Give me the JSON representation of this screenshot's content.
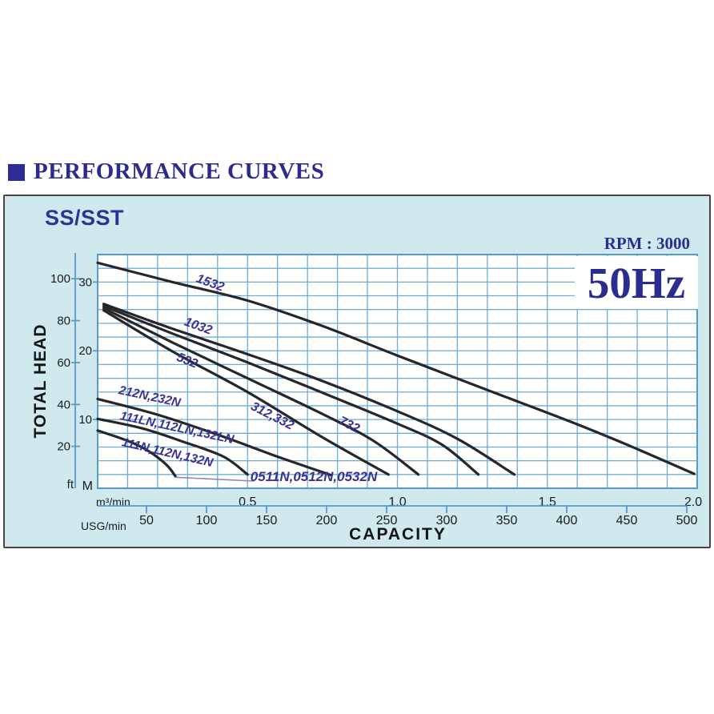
{
  "header": {
    "title": "PERFORMANCE CURVES"
  },
  "panel": {
    "model": "SS/SST",
    "rpm_label": "RPM : 3000",
    "frequency_label": "50Hz"
  },
  "chart_data": {
    "type": "line",
    "title": "SS/SST pump performance curves, RPM 3000, 50Hz",
    "xlabel": "CAPACITY",
    "ylabel": "TOTAL HEAD",
    "grid": true,
    "legend_position": "labels-on-curves",
    "x_axis": {
      "primary_unit": "m³/min",
      "primary_ticks": [
        "0.5",
        "1.0",
        "1.5",
        "2.0"
      ],
      "primary_range": [
        0,
        2.0
      ],
      "secondary_unit": "USG/min",
      "secondary_ticks": [
        50,
        100,
        150,
        200,
        250,
        300,
        350,
        400,
        450,
        500
      ]
    },
    "y_axis": {
      "primary_unit": "M",
      "primary_ticks": [
        10,
        20,
        30
      ],
      "primary_range": [
        0,
        34
      ],
      "secondary_unit": "ft",
      "secondary_ticks": [
        20,
        40,
        60,
        80,
        100
      ]
    },
    "series": [
      {
        "label": "1532",
        "points": [
          [
            0,
            32.8
          ],
          [
            0.25,
            30.0
          ],
          [
            0.5,
            27.3
          ],
          [
            0.75,
            23.6
          ],
          [
            1.0,
            19.3
          ],
          [
            1.3,
            14.3
          ],
          [
            1.6,
            9.3
          ],
          [
            1.8,
            5.7
          ],
          [
            1.99,
            2.1
          ]
        ]
      },
      {
        "label": "732",
        "points": [
          [
            0.02,
            26.8
          ],
          [
            0.25,
            23.2
          ],
          [
            0.5,
            19.5
          ],
          [
            0.75,
            15.6
          ],
          [
            1.0,
            11.2
          ],
          [
            1.2,
            7.2
          ],
          [
            1.39,
            2.0
          ]
        ]
      },
      {
        "label": "1032",
        "points": [
          [
            0.02,
            26.5
          ],
          [
            0.25,
            22.5
          ],
          [
            0.5,
            18.3
          ],
          [
            0.75,
            13.9
          ],
          [
            1.0,
            9.4
          ],
          [
            1.15,
            6.3
          ],
          [
            1.27,
            2.0
          ]
        ]
      },
      {
        "label": "532",
        "points": [
          [
            0.02,
            26.2
          ],
          [
            0.25,
            21.2
          ],
          [
            0.5,
            16.0
          ],
          [
            0.75,
            10.8
          ],
          [
            0.92,
            6.9
          ],
          [
            1.07,
            2.0
          ]
        ]
      },
      {
        "label": "312,332",
        "points": [
          [
            0.02,
            25.9
          ],
          [
            0.25,
            19.9
          ],
          [
            0.5,
            14.0
          ],
          [
            0.75,
            7.4
          ],
          [
            0.97,
            2.0
          ]
        ]
      },
      {
        "label": "212N,232N",
        "points": [
          [
            0,
            13.0
          ],
          [
            0.2,
            10.7
          ],
          [
            0.4,
            7.8
          ],
          [
            0.6,
            4.6
          ],
          [
            0.78,
            1.9
          ]
        ]
      },
      {
        "label": "111LN,112LN,132LN",
        "points": [
          [
            0,
            10.1
          ],
          [
            0.15,
            8.7
          ],
          [
            0.29,
            6.7
          ],
          [
            0.42,
            4.6
          ],
          [
            0.5,
            2.0
          ]
        ]
      },
      {
        "label": "111N,112N,132N",
        "points": [
          [
            0,
            8.4
          ],
          [
            0.1,
            6.9
          ],
          [
            0.17,
            5.4
          ],
          [
            0.23,
            3.4
          ],
          [
            0.26,
            1.7
          ]
        ]
      },
      {
        "label": "0511N,0512N,0532N",
        "thin": true,
        "points": [
          [
            0.26,
            1.6
          ],
          [
            0.4,
            1.3
          ],
          [
            0.52,
            1.05
          ]
        ]
      }
    ]
  },
  "colors": {
    "title_navy": "#2b2c8e",
    "model_navy": "#2b3494",
    "curve_label_indigo": "#3b3191",
    "panel_background": "#cfe9ef",
    "chart_background": "#fffffe",
    "grid_blue": "#6cacda",
    "frame_blue": "#569bcc",
    "curve_black": "#27272b",
    "thin_curve_purple": "#9186ba",
    "axis_text": "#1b1b1b"
  }
}
